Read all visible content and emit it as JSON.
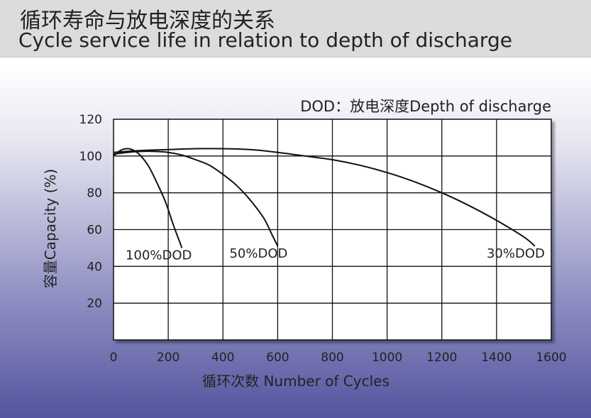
{
  "header": {
    "title_cn": "循环寿命与放电深度的关系",
    "title_en": "Cycle service life in relation to depth of discharge"
  },
  "chart_data": {
    "type": "line",
    "annotation": "DOD：放电深度Depth of discharge",
    "xlabel": "循环次数 Number of Cycles",
    "ylabel": "容量Capacity (%)",
    "xlim": [
      0,
      1600
    ],
    "ylim": [
      0,
      120
    ],
    "x_ticks": [
      0,
      200,
      400,
      600,
      800,
      1000,
      1200,
      1400,
      1600
    ],
    "y_ticks": [
      20,
      40,
      60,
      80,
      100,
      120
    ],
    "grid": true,
    "series": [
      {
        "name": "100%DOD",
        "x": [
          0,
          25,
          50,
          75,
          100,
          130,
          160,
          190,
          220,
          245,
          250
        ],
        "y": [
          100,
          103,
          104,
          103,
          100,
          94,
          85,
          75,
          62,
          52,
          50
        ]
      },
      {
        "name": "50%DOD",
        "x": [
          0,
          50,
          100,
          150,
          200,
          250,
          300,
          350,
          400,
          450,
          500,
          550,
          580,
          600
        ],
        "y": [
          101,
          102,
          102.5,
          102.5,
          102,
          100.5,
          98,
          95,
          90,
          84,
          76,
          66,
          57,
          51
        ]
      },
      {
        "name": "30%DOD",
        "x": [
          0,
          100,
          200,
          300,
          400,
          500,
          600,
          700,
          800,
          900,
          1000,
          1100,
          1200,
          1300,
          1400,
          1500,
          1540
        ],
        "y": [
          102,
          103,
          103.5,
          104,
          104,
          103.5,
          102,
          100,
          98,
          95,
          91,
          86,
          80,
          73,
          65,
          56,
          51
        ]
      }
    ]
  }
}
